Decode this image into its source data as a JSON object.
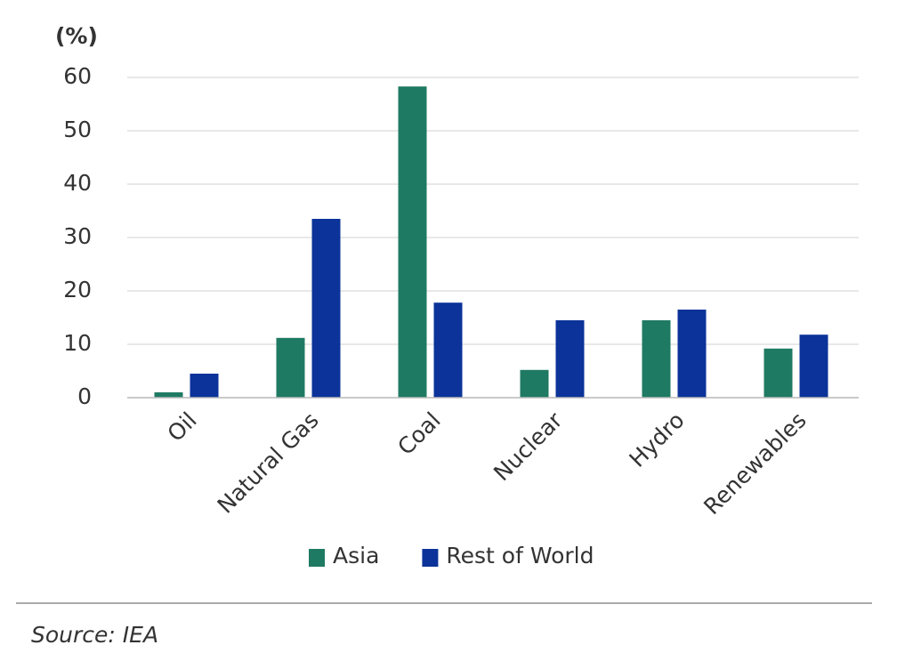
{
  "chart_data": {
    "type": "bar",
    "y_label": "(%)",
    "categories": [
      "Oil",
      "Natural Gas",
      "Coal",
      "Nuclear",
      "Hydro",
      "Renewables"
    ],
    "series": [
      {
        "name": "Asia",
        "color": "#1f7a63",
        "values": [
          1,
          11.2,
          58.3,
          5.2,
          14.5,
          9.2
        ]
      },
      {
        "name": "Rest of World",
        "color": "#0b3399",
        "values": [
          4.5,
          33.5,
          17.8,
          14.5,
          16.5,
          11.8
        ]
      }
    ],
    "ylim": [
      0,
      60
    ],
    "yticks": [
      0,
      10,
      20,
      30,
      40,
      50,
      60
    ],
    "grid": true,
    "legend": "bottom",
    "source": "Source: IEA"
  }
}
